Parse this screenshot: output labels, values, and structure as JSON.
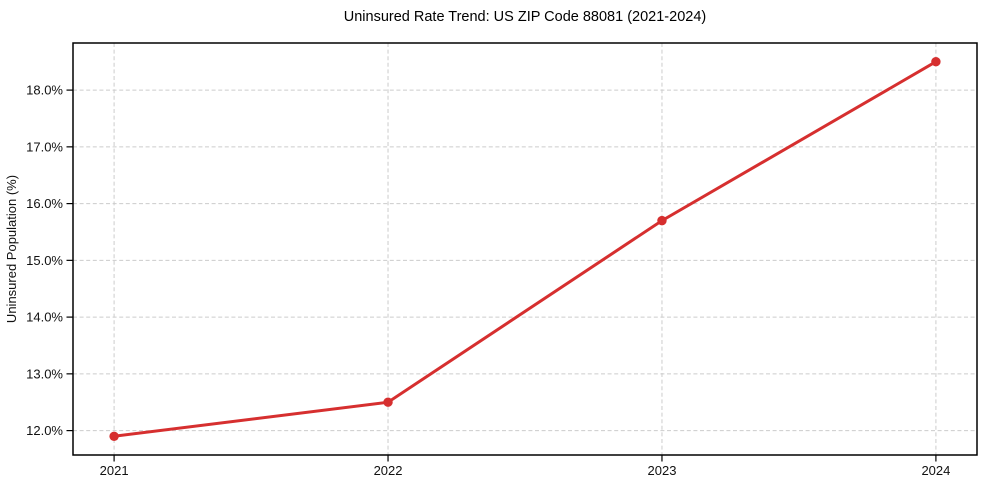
{
  "chart_data": {
    "type": "line",
    "title": "Uninsured Rate Trend: US ZIP Code 88081 (2021-2024)",
    "xlabel": "",
    "ylabel": "Uninsured Population (%)",
    "x": [
      2021,
      2022,
      2023,
      2024
    ],
    "x_tick_labels": [
      "2021",
      "2022",
      "2023",
      "2024"
    ],
    "values": [
      11.9,
      12.5,
      15.7,
      18.5
    ],
    "value_unit": "%",
    "ytick_values": [
      12,
      13,
      14,
      15,
      16,
      17,
      18
    ],
    "ytick_labels": [
      "12.0%",
      "13.0%",
      "14.0%",
      "15.0%",
      "16.0%",
      "17.0%",
      "18.0%"
    ],
    "ylim": [
      11.57,
      18.83
    ],
    "xlim": [
      2020.85,
      2024.15
    ],
    "grid": true,
    "grid_style": "dashed",
    "legend_position": "none",
    "colors": {
      "line": "#d62f2f",
      "marker": "#d62f2f",
      "grid": "#cccccc",
      "spine": "#000000",
      "tick_text": "#111111",
      "background": "#ffffff"
    }
  }
}
